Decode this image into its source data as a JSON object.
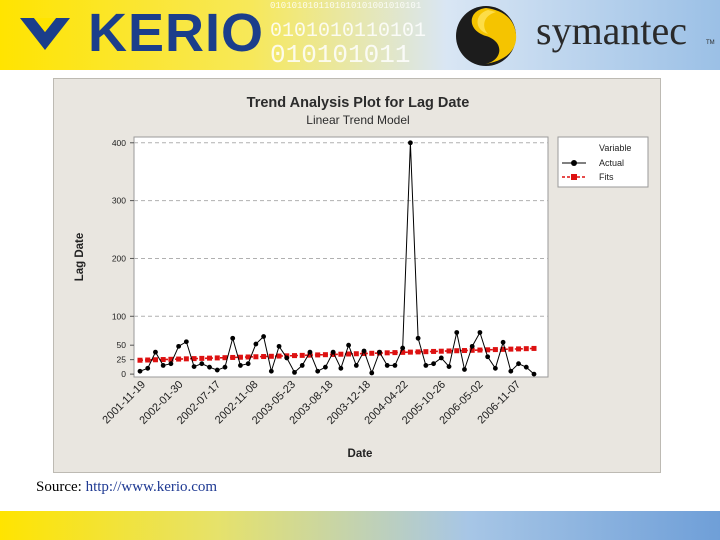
{
  "header": {
    "kerio_logo": "KERIO",
    "symantec_logo": "symantec",
    "symantec_tm": "TM",
    "binary_lines": [
      "0101010101101010101001010101",
      "0101010110101",
      "010101011"
    ]
  },
  "source": {
    "prefix": "Source: ",
    "link": "http://www.kerio.com"
  },
  "colors": {
    "actual": "#000000",
    "fits": "#dd1111",
    "kerio_blue": "#1b3e8b",
    "panel_bg": "#e9e6e0",
    "plot_bg": "#ffffff"
  },
  "chart_data": {
    "type": "line",
    "title": "Trend Analysis Plot for Lag Date",
    "subtitle": "Linear Trend Model",
    "xlabel": "Date",
    "ylabel": "Lag Date",
    "ylim": [
      -5,
      410
    ],
    "yticks": [
      0,
      25,
      50,
      100,
      200,
      300,
      400
    ],
    "grid": "horizontal dashed",
    "legend": {
      "title": "Variable",
      "position": "top-right"
    },
    "x_tick_labels": [
      "2001-11-19",
      "2002-01-30",
      "2002-07-17",
      "2002-11-08",
      "2003-05-23",
      "2003-08-18",
      "2003-12-18",
      "2004-04-22",
      "2005-10-26",
      "2006-05-02",
      "2006-11-07"
    ],
    "series": [
      {
        "name": "Actual",
        "marker": "circle",
        "values": [
          5,
          10,
          38,
          15,
          18,
          48,
          56,
          13,
          18,
          12,
          7,
          12,
          62,
          15,
          18,
          52,
          65,
          5,
          48,
          28,
          3,
          15,
          38,
          5,
          12,
          38,
          10,
          50,
          15,
          40,
          2,
          38,
          15,
          15,
          45,
          400,
          62,
          15,
          18,
          28,
          13,
          72,
          8,
          48,
          72,
          30,
          10,
          55,
          5,
          18,
          12,
          0
        ]
      },
      {
        "name": "Fits",
        "marker": "square",
        "values": [
          24.0,
          24.4,
          24.8,
          25.2,
          25.6,
          26.0,
          26.4,
          26.8,
          27.2,
          27.6,
          28.0,
          28.4,
          28.8,
          29.2,
          29.6,
          30.0,
          30.4,
          30.8,
          31.2,
          31.6,
          32.0,
          32.4,
          32.8,
          33.2,
          33.6,
          34.0,
          34.4,
          34.8,
          35.2,
          35.6,
          36.0,
          36.4,
          36.8,
          37.2,
          37.6,
          38.0,
          38.4,
          38.8,
          39.2,
          39.6,
          40.0,
          40.4,
          40.8,
          41.2,
          41.6,
          42.0,
          42.4,
          42.8,
          43.2,
          43.6,
          44.0,
          44.4
        ]
      }
    ]
  }
}
